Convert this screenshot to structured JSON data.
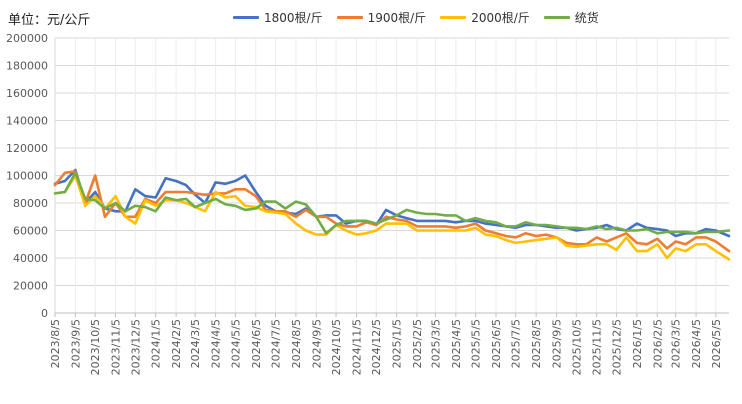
{
  "chart_data": {
    "type": "line",
    "title": "",
    "unit_label": "单位：元/公斤",
    "ylim": [
      0,
      200000
    ],
    "yticks": [
      "0",
      "20000",
      "40000",
      "60000",
      "80000",
      "100000",
      "120000",
      "140000",
      "160000",
      "180000",
      "200000"
    ],
    "x_tick_labels": [
      "2023/8/5",
      "2023/9/5",
      "2023/10/5",
      "2023/11/5",
      "2023/12/5",
      "2024/1/5",
      "2024/2/5",
      "2024/3/5",
      "2024/4/5",
      "2024/5/5",
      "2024/6/5",
      "2024/7/5",
      "2024/8/5",
      "2024/9/5",
      "2024/10/5",
      "2024/11/5",
      "2024/12/5",
      "2025/1/5",
      "2025/2/5",
      "2025/3/5",
      "2025/4/5",
      "2025/5/5",
      "2025/6/5",
      "2025/7/5",
      "2025/8/5",
      "2025/9/5",
      "2025/10/5",
      "2025/11/5",
      "2025/12/5",
      "2026/1/5",
      "2026/2/5",
      "2026/3/5",
      "2026/4/5",
      "2026/5/5"
    ],
    "x_domain": [
      "2023/8/5",
      "2026/5/25"
    ],
    "grid": true,
    "legend_position": "top",
    "series": [
      {
        "name": "1800根/斤",
        "color": "#4472C4",
        "points": [
          [
            "2023/8/5",
            94000
          ],
          [
            "2023/8/20",
            96000
          ],
          [
            "2023/9/5",
            104000
          ],
          [
            "2023/9/20",
            80000
          ],
          [
            "2023/10/5",
            88000
          ],
          [
            "2023/10/20",
            76000
          ],
          [
            "2023/11/5",
            74000
          ],
          [
            "2023/11/20",
            74000
          ],
          [
            "2023/12/5",
            90000
          ],
          [
            "2023/12/20",
            85000
          ],
          [
            "2024/1/5",
            84000
          ],
          [
            "2024/1/20",
            98000
          ],
          [
            "2024/2/5",
            96000
          ],
          [
            "2024/2/20",
            93000
          ],
          [
            "2024/3/5",
            86000
          ],
          [
            "2024/3/20",
            80000
          ],
          [
            "2024/4/5",
            95000
          ],
          [
            "2024/4/20",
            94000
          ],
          [
            "2024/5/5",
            96000
          ],
          [
            "2024/5/20",
            100000
          ],
          [
            "2024/6/5",
            88000
          ],
          [
            "2024/6/20",
            78000
          ],
          [
            "2024/7/5",
            74000
          ],
          [
            "2024/7/20",
            73000
          ],
          [
            "2024/8/5",
            72000
          ],
          [
            "2024/8/20",
            76000
          ],
          [
            "2024/9/5",
            70000
          ],
          [
            "2024/9/20",
            71000
          ],
          [
            "2024/10/5",
            71000
          ],
          [
            "2024/10/20",
            65000
          ],
          [
            "2024/11/5",
            67000
          ],
          [
            "2024/11/20",
            67000
          ],
          [
            "2024/12/5",
            64000
          ],
          [
            "2024/12/20",
            75000
          ],
          [
            "2025/1/5",
            71000
          ],
          [
            "2025/1/20",
            69000
          ],
          [
            "2025/2/5",
            67000
          ],
          [
            "2025/2/20",
            67000
          ],
          [
            "2025/3/5",
            67000
          ],
          [
            "2025/3/20",
            67000
          ],
          [
            "2025/4/5",
            66000
          ],
          [
            "2025/4/20",
            67000
          ],
          [
            "2025/5/5",
            67000
          ],
          [
            "2025/5/20",
            65000
          ],
          [
            "2025/6/5",
            64000
          ],
          [
            "2025/6/20",
            63000
          ],
          [
            "2025/7/5",
            62000
          ],
          [
            "2025/7/20",
            64000
          ],
          [
            "2025/8/5",
            64000
          ],
          [
            "2025/8/20",
            63000
          ],
          [
            "2025/9/5",
            62000
          ],
          [
            "2025/9/20",
            62000
          ],
          [
            "2025/10/5",
            60000
          ],
          [
            "2025/10/20",
            61000
          ],
          [
            "2025/11/5",
            62000
          ],
          [
            "2025/11/20",
            64000
          ],
          [
            "2025/12/5",
            61000
          ],
          [
            "2025/12/20",
            60000
          ],
          [
            "2026/1/5",
            65000
          ],
          [
            "2026/1/20",
            62000
          ],
          [
            "2026/2/5",
            61000
          ],
          [
            "2026/2/20",
            60000
          ],
          [
            "2026/3/5",
            56000
          ],
          [
            "2026/3/20",
            58000
          ],
          [
            "2026/4/5",
            58000
          ],
          [
            "2026/4/20",
            61000
          ],
          [
            "2026/5/5",
            60000
          ],
          [
            "2026/5/25",
            56000
          ]
        ]
      },
      {
        "name": "1900根/斤",
        "color": "#ED7D31",
        "points": [
          [
            "2023/8/5",
            93000
          ],
          [
            "2023/8/20",
            102000
          ],
          [
            "2023/9/5",
            103000
          ],
          [
            "2023/9/20",
            80000
          ],
          [
            "2023/10/5",
            100000
          ],
          [
            "2023/10/20",
            70000
          ],
          [
            "2023/11/5",
            80000
          ],
          [
            "2023/11/20",
            70000
          ],
          [
            "2023/12/5",
            70000
          ],
          [
            "2023/12/20",
            83000
          ],
          [
            "2024/1/5",
            80000
          ],
          [
            "2024/1/20",
            88000
          ],
          [
            "2024/2/5",
            88000
          ],
          [
            "2024/2/20",
            88000
          ],
          [
            "2024/3/5",
            87000
          ],
          [
            "2024/3/20",
            86000
          ],
          [
            "2024/4/5",
            87000
          ],
          [
            "2024/4/20",
            87000
          ],
          [
            "2024/5/5",
            90000
          ],
          [
            "2024/5/20",
            90000
          ],
          [
            "2024/6/5",
            85000
          ],
          [
            "2024/6/20",
            75000
          ],
          [
            "2024/7/5",
            74000
          ],
          [
            "2024/7/20",
            74000
          ],
          [
            "2024/8/5",
            70000
          ],
          [
            "2024/8/20",
            75000
          ],
          [
            "2024/9/5",
            70000
          ],
          [
            "2024/9/20",
            70000
          ],
          [
            "2024/10/5",
            65000
          ],
          [
            "2024/10/20",
            63000
          ],
          [
            "2024/11/5",
            63000
          ],
          [
            "2024/11/20",
            66000
          ],
          [
            "2024/12/5",
            64000
          ],
          [
            "2024/12/20",
            70000
          ],
          [
            "2025/1/5",
            68000
          ],
          [
            "2025/1/20",
            67000
          ],
          [
            "2025/2/5",
            63000
          ],
          [
            "2025/2/20",
            63000
          ],
          [
            "2025/3/5",
            63000
          ],
          [
            "2025/3/20",
            63000
          ],
          [
            "2025/4/5",
            62000
          ],
          [
            "2025/4/20",
            63000
          ],
          [
            "2025/5/5",
            65000
          ],
          [
            "2025/5/20",
            60000
          ],
          [
            "2025/6/5",
            58000
          ],
          [
            "2025/6/20",
            56000
          ],
          [
            "2025/7/5",
            55000
          ],
          [
            "2025/7/20",
            58000
          ],
          [
            "2025/8/5",
            56000
          ],
          [
            "2025/8/20",
            57000
          ],
          [
            "2025/9/5",
            55000
          ],
          [
            "2025/9/20",
            51000
          ],
          [
            "2025/10/5",
            50000
          ],
          [
            "2025/10/20",
            50000
          ],
          [
            "2025/11/5",
            55000
          ],
          [
            "2025/11/20",
            52000
          ],
          [
            "2025/12/5",
            55000
          ],
          [
            "2025/12/20",
            58000
          ],
          [
            "2026/1/5",
            51000
          ],
          [
            "2026/1/20",
            50000
          ],
          [
            "2026/2/5",
            54000
          ],
          [
            "2026/2/20",
            47000
          ],
          [
            "2026/3/5",
            52000
          ],
          [
            "2026/3/20",
            50000
          ],
          [
            "2026/4/5",
            55000
          ],
          [
            "2026/4/20",
            55000
          ],
          [
            "2026/5/5",
            52000
          ],
          [
            "2026/5/25",
            45000
          ]
        ]
      },
      {
        "name": "2000根/斤",
        "color": "#FFC000",
        "points": [
          [
            "2023/8/5",
            87000
          ],
          [
            "2023/8/20",
            88000
          ],
          [
            "2023/9/5",
            100000
          ],
          [
            "2023/9/20",
            78000
          ],
          [
            "2023/10/5",
            85000
          ],
          [
            "2023/10/20",
            76000
          ],
          [
            "2023/11/5",
            85000
          ],
          [
            "2023/11/20",
            70000
          ],
          [
            "2023/12/5",
            65000
          ],
          [
            "2023/12/20",
            82000
          ],
          [
            "2024/1/5",
            78000
          ],
          [
            "2024/1/20",
            82000
          ],
          [
            "2024/2/5",
            82000
          ],
          [
            "2024/2/20",
            80000
          ],
          [
            "2024/3/5",
            77000
          ],
          [
            "2024/3/20",
            74000
          ],
          [
            "2024/4/5",
            88000
          ],
          [
            "2024/4/20",
            84000
          ],
          [
            "2024/5/5",
            85000
          ],
          [
            "2024/5/20",
            78000
          ],
          [
            "2024/6/5",
            77000
          ],
          [
            "2024/6/20",
            74000
          ],
          [
            "2024/7/5",
            73000
          ],
          [
            "2024/7/20",
            72000
          ],
          [
            "2024/8/5",
            65000
          ],
          [
            "2024/8/20",
            60000
          ],
          [
            "2024/9/5",
            57000
          ],
          [
            "2024/9/20",
            57000
          ],
          [
            "2024/10/5",
            64000
          ],
          [
            "2024/10/20",
            60000
          ],
          [
            "2024/11/5",
            57000
          ],
          [
            "2024/11/20",
            58000
          ],
          [
            "2024/12/5",
            60000
          ],
          [
            "2024/12/20",
            65000
          ],
          [
            "2025/1/5",
            65000
          ],
          [
            "2025/1/20",
            65000
          ],
          [
            "2025/2/5",
            60000
          ],
          [
            "2025/2/20",
            60000
          ],
          [
            "2025/3/5",
            60000
          ],
          [
            "2025/3/20",
            60000
          ],
          [
            "2025/4/5",
            60000
          ],
          [
            "2025/4/20",
            60000
          ],
          [
            "2025/5/5",
            62000
          ],
          [
            "2025/5/20",
            57000
          ],
          [
            "2025/6/5",
            56000
          ],
          [
            "2025/6/20",
            53000
          ],
          [
            "2025/7/5",
            51000
          ],
          [
            "2025/7/20",
            52000
          ],
          [
            "2025/8/5",
            53000
          ],
          [
            "2025/8/20",
            54000
          ],
          [
            "2025/9/5",
            55000
          ],
          [
            "2025/9/20",
            49000
          ],
          [
            "2025/10/5",
            48000
          ],
          [
            "2025/10/20",
            49000
          ],
          [
            "2025/11/5",
            50000
          ],
          [
            "2025/11/20",
            50000
          ],
          [
            "2025/12/5",
            46000
          ],
          [
            "2025/12/20",
            55000
          ],
          [
            "2026/1/5",
            45000
          ],
          [
            "2026/1/20",
            45000
          ],
          [
            "2026/2/5",
            50000
          ],
          [
            "2026/2/20",
            40000
          ],
          [
            "2026/3/5",
            47000
          ],
          [
            "2026/3/20",
            45000
          ],
          [
            "2026/4/5",
            50000
          ],
          [
            "2026/4/20",
            50000
          ],
          [
            "2026/5/5",
            45000
          ],
          [
            "2026/5/25",
            39000
          ]
        ]
      },
      {
        "name": "统货",
        "color": "#70AD47",
        "points": [
          [
            "2023/8/5",
            87000
          ],
          [
            "2023/8/20",
            88000
          ],
          [
            "2023/9/5",
            102000
          ],
          [
            "2023/9/20",
            83000
          ],
          [
            "2023/10/5",
            82000
          ],
          [
            "2023/10/20",
            76000
          ],
          [
            "2023/11/5",
            80000
          ],
          [
            "2023/11/20",
            74000
          ],
          [
            "2023/12/5",
            78000
          ],
          [
            "2023/12/20",
            77000
          ],
          [
            "2024/1/5",
            74000
          ],
          [
            "2024/1/20",
            84000
          ],
          [
            "2024/2/5",
            82000
          ],
          [
            "2024/2/20",
            83000
          ],
          [
            "2024/3/5",
            77000
          ],
          [
            "2024/3/20",
            80000
          ],
          [
            "2024/4/5",
            83000
          ],
          [
            "2024/4/20",
            79000
          ],
          [
            "2024/5/5",
            78000
          ],
          [
            "2024/5/20",
            75000
          ],
          [
            "2024/6/5",
            76000
          ],
          [
            "2024/6/20",
            81000
          ],
          [
            "2024/7/5",
            81000
          ],
          [
            "2024/7/20",
            76000
          ],
          [
            "2024/8/5",
            81000
          ],
          [
            "2024/8/20",
            79000
          ],
          [
            "2024/9/5",
            70000
          ],
          [
            "2024/9/20",
            58000
          ],
          [
            "2024/10/5",
            64000
          ],
          [
            "2024/10/20",
            67000
          ],
          [
            "2024/11/5",
            67000
          ],
          [
            "2024/11/20",
            67000
          ],
          [
            "2024/12/5",
            65000
          ],
          [
            "2024/12/20",
            68000
          ],
          [
            "2025/1/5",
            71000
          ],
          [
            "2025/1/20",
            75000
          ],
          [
            "2025/2/5",
            73000
          ],
          [
            "2025/2/20",
            72000
          ],
          [
            "2025/3/5",
            72000
          ],
          [
            "2025/3/20",
            71000
          ],
          [
            "2025/4/5",
            71000
          ],
          [
            "2025/4/20",
            67000
          ],
          [
            "2025/5/5",
            69000
          ],
          [
            "2025/5/20",
            67000
          ],
          [
            "2025/6/5",
            66000
          ],
          [
            "2025/6/20",
            63000
          ],
          [
            "2025/7/5",
            63000
          ],
          [
            "2025/7/20",
            66000
          ],
          [
            "2025/8/5",
            64000
          ],
          [
            "2025/8/20",
            64000
          ],
          [
            "2025/9/5",
            63000
          ],
          [
            "2025/9/20",
            62000
          ],
          [
            "2025/10/5",
            62000
          ],
          [
            "2025/10/20",
            61000
          ],
          [
            "2025/11/5",
            63000
          ],
          [
            "2025/11/20",
            61000
          ],
          [
            "2025/12/5",
            62000
          ],
          [
            "2025/12/20",
            60000
          ],
          [
            "2026/1/5",
            60000
          ],
          [
            "2026/1/20",
            61000
          ],
          [
            "2026/2/5",
            58000
          ],
          [
            "2026/2/20",
            59000
          ],
          [
            "2026/3/5",
            59000
          ],
          [
            "2026/3/20",
            59000
          ],
          [
            "2026/4/5",
            58000
          ],
          [
            "2026/4/20",
            59000
          ],
          [
            "2026/5/5",
            59000
          ],
          [
            "2026/5/25",
            60000
          ]
        ]
      }
    ]
  }
}
